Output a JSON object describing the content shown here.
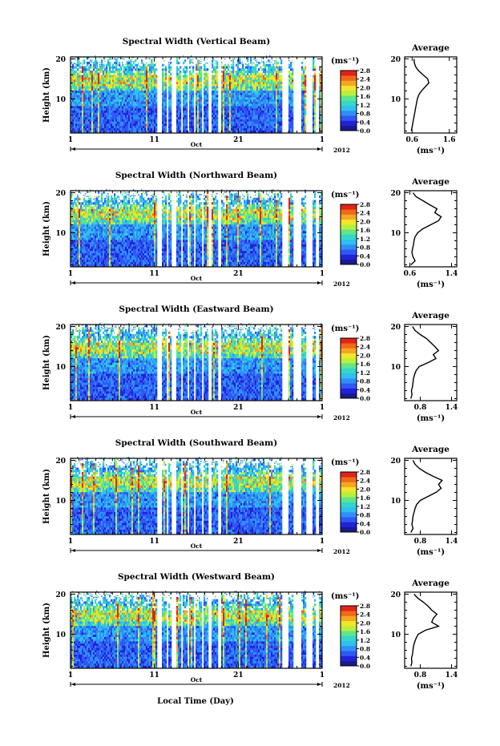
{
  "figure": {
    "xlabel": "Local Time (Day)",
    "month_label": "Oct",
    "year_label": "2012",
    "unit_label": "(ms⁻¹)",
    "avg_title": "Average",
    "avg_xlabel": "(ms⁻¹)"
  },
  "colors": {
    "scale": [
      "#1a1a8c",
      "#2222d8",
      "#2f58f5",
      "#2f8ff7",
      "#2fc0f0",
      "#35d6c8",
      "#5fe58a",
      "#b8ef3c",
      "#f2e52c",
      "#f5a623",
      "#f06a18",
      "#e0241a"
    ]
  },
  "chart_data": [
    {
      "type": "heatmap",
      "title": "Spectral Width (Vertical Beam)",
      "ylabel": "Height (km)",
      "xlim": [
        1,
        31
      ],
      "ylim": [
        1.5,
        20.5
      ],
      "x_ticks": [
        "1",
        "11",
        "21",
        "1"
      ],
      "y_ticks": [
        "10",
        "20"
      ],
      "colorbar_ticks": [
        "0.0",
        "0.4",
        "0.8",
        "1.2",
        "1.6",
        "2.0",
        "2.4",
        "2.8"
      ],
      "average": {
        "x_ticks": [
          "0.6",
          "1.6"
        ],
        "xlim": [
          0.4,
          1.8
        ],
        "y_ticks": [
          "10",
          "20"
        ],
        "profile": [
          [
            0.58,
            2
          ],
          [
            0.6,
            3
          ],
          [
            0.62,
            4
          ],
          [
            0.64,
            5
          ],
          [
            0.66,
            6
          ],
          [
            0.68,
            7
          ],
          [
            0.7,
            8
          ],
          [
            0.72,
            9
          ],
          [
            0.74,
            10
          ],
          [
            0.78,
            11
          ],
          [
            0.85,
            12
          ],
          [
            0.95,
            13
          ],
          [
            1.05,
            14
          ],
          [
            1.02,
            15
          ],
          [
            0.9,
            16
          ],
          [
            0.78,
            17
          ],
          [
            0.7,
            18
          ],
          [
            0.66,
            19
          ],
          [
            0.65,
            20
          ]
        ]
      }
    },
    {
      "type": "heatmap",
      "title": "Spectral Width (Northward Beam)",
      "ylabel": "Height (km)",
      "xlim": [
        1,
        31
      ],
      "ylim": [
        1.5,
        20.5
      ],
      "x_ticks": [
        "1",
        "11",
        "21",
        "1"
      ],
      "y_ticks": [
        "10",
        "20"
      ],
      "colorbar_ticks": [
        "0.0",
        "0.4",
        "0.8",
        "1.2",
        "1.6",
        "2.0",
        "2.4",
        "2.8"
      ],
      "average": {
        "x_ticks": [
          "0.6",
          "1.4"
        ],
        "xlim": [
          0.5,
          1.5
        ],
        "y_ticks": [
          "10",
          "20"
        ],
        "profile": [
          [
            0.62,
            2
          ],
          [
            0.7,
            3
          ],
          [
            0.66,
            4
          ],
          [
            0.64,
            5
          ],
          [
            0.65,
            6
          ],
          [
            0.67,
            7
          ],
          [
            0.68,
            8
          ],
          [
            0.7,
            9
          ],
          [
            0.75,
            10
          ],
          [
            0.85,
            11
          ],
          [
            1.0,
            12
          ],
          [
            1.15,
            13
          ],
          [
            1.2,
            14
          ],
          [
            1.08,
            15
          ],
          [
            1.12,
            16
          ],
          [
            0.98,
            17
          ],
          [
            0.85,
            18
          ],
          [
            0.72,
            19
          ],
          [
            0.66,
            20
          ]
        ]
      }
    },
    {
      "type": "heatmap",
      "title": "Spectral Width (Eastward Beam)",
      "ylabel": "Height (km)",
      "xlim": [
        1,
        31
      ],
      "ylim": [
        1.5,
        20.5
      ],
      "x_ticks": [
        "1",
        "11",
        "21",
        "1"
      ],
      "y_ticks": [
        "10",
        "20"
      ],
      "colorbar_ticks": [
        "0.0",
        "0.4",
        "0.8",
        "1.2",
        "1.6",
        "2.0",
        "2.4",
        "2.8"
      ],
      "average": {
        "x_ticks": [
          "0.8",
          "1.4"
        ],
        "xlim": [
          0.5,
          1.5
        ],
        "y_ticks": [
          "10",
          "20"
        ],
        "profile": [
          [
            0.62,
            2
          ],
          [
            0.64,
            3
          ],
          [
            0.63,
            4
          ],
          [
            0.65,
            5
          ],
          [
            0.66,
            6
          ],
          [
            0.67,
            7
          ],
          [
            0.69,
            8
          ],
          [
            0.72,
            9
          ],
          [
            0.78,
            10
          ],
          [
            0.95,
            11
          ],
          [
            1.1,
            12
          ],
          [
            1.05,
            13
          ],
          [
            1.15,
            14
          ],
          [
            1.08,
            15
          ],
          [
            1.0,
            16
          ],
          [
            0.92,
            17
          ],
          [
            0.8,
            18
          ],
          [
            0.7,
            19
          ],
          [
            0.65,
            20
          ]
        ]
      }
    },
    {
      "type": "heatmap",
      "title": "Spectral Width (Southward Beam)",
      "ylabel": "Height (km)",
      "xlim": [
        1,
        31
      ],
      "ylim": [
        1.5,
        20.5
      ],
      "x_ticks": [
        "1",
        "11",
        "21",
        "1"
      ],
      "y_ticks": [
        "10",
        "20"
      ],
      "colorbar_ticks": [
        "0.0",
        "0.4",
        "0.8",
        "1.2",
        "1.6",
        "2.0",
        "2.4",
        "2.8"
      ],
      "average": {
        "x_ticks": [
          "0.8",
          "1.4"
        ],
        "xlim": [
          0.5,
          1.5
        ],
        "y_ticks": [
          "10",
          "20"
        ],
        "profile": [
          [
            0.62,
            2
          ],
          [
            0.66,
            3
          ],
          [
            0.64,
            4
          ],
          [
            0.65,
            5
          ],
          [
            0.66,
            6
          ],
          [
            0.68,
            7
          ],
          [
            0.7,
            8
          ],
          [
            0.73,
            9
          ],
          [
            0.8,
            10
          ],
          [
            0.95,
            11
          ],
          [
            1.1,
            12
          ],
          [
            1.2,
            13
          ],
          [
            1.15,
            14
          ],
          [
            1.22,
            15
          ],
          [
            1.05,
            16
          ],
          [
            0.9,
            17
          ],
          [
            0.78,
            18
          ],
          [
            0.7,
            19
          ],
          [
            0.66,
            20
          ]
        ]
      }
    },
    {
      "type": "heatmap",
      "title": "Spectral Width (Westward Beam)",
      "ylabel": "Height (km)",
      "xlim": [
        1,
        31
      ],
      "ylim": [
        1.5,
        20.5
      ],
      "x_ticks": [
        "1",
        "11",
        "21",
        "1"
      ],
      "y_ticks": [
        "10",
        "20"
      ],
      "colorbar_ticks": [
        "0.0",
        "0.4",
        "0.8",
        "1.2",
        "1.6",
        "2.0",
        "2.4",
        "2.8"
      ],
      "average": {
        "x_ticks": [
          "0.8",
          "1.4"
        ],
        "xlim": [
          0.5,
          1.5
        ],
        "y_ticks": [
          "10",
          "20"
        ],
        "profile": [
          [
            0.62,
            2
          ],
          [
            0.64,
            3
          ],
          [
            0.63,
            4
          ],
          [
            0.65,
            5
          ],
          [
            0.66,
            6
          ],
          [
            0.67,
            7
          ],
          [
            0.69,
            8
          ],
          [
            0.72,
            9
          ],
          [
            0.76,
            10
          ],
          [
            0.9,
            11
          ],
          [
            1.15,
            12
          ],
          [
            1.02,
            13
          ],
          [
            1.05,
            14
          ],
          [
            1.12,
            15
          ],
          [
            1.02,
            16
          ],
          [
            0.95,
            17
          ],
          [
            0.86,
            18
          ],
          [
            0.75,
            19
          ],
          [
            0.68,
            20
          ]
        ]
      }
    }
  ]
}
